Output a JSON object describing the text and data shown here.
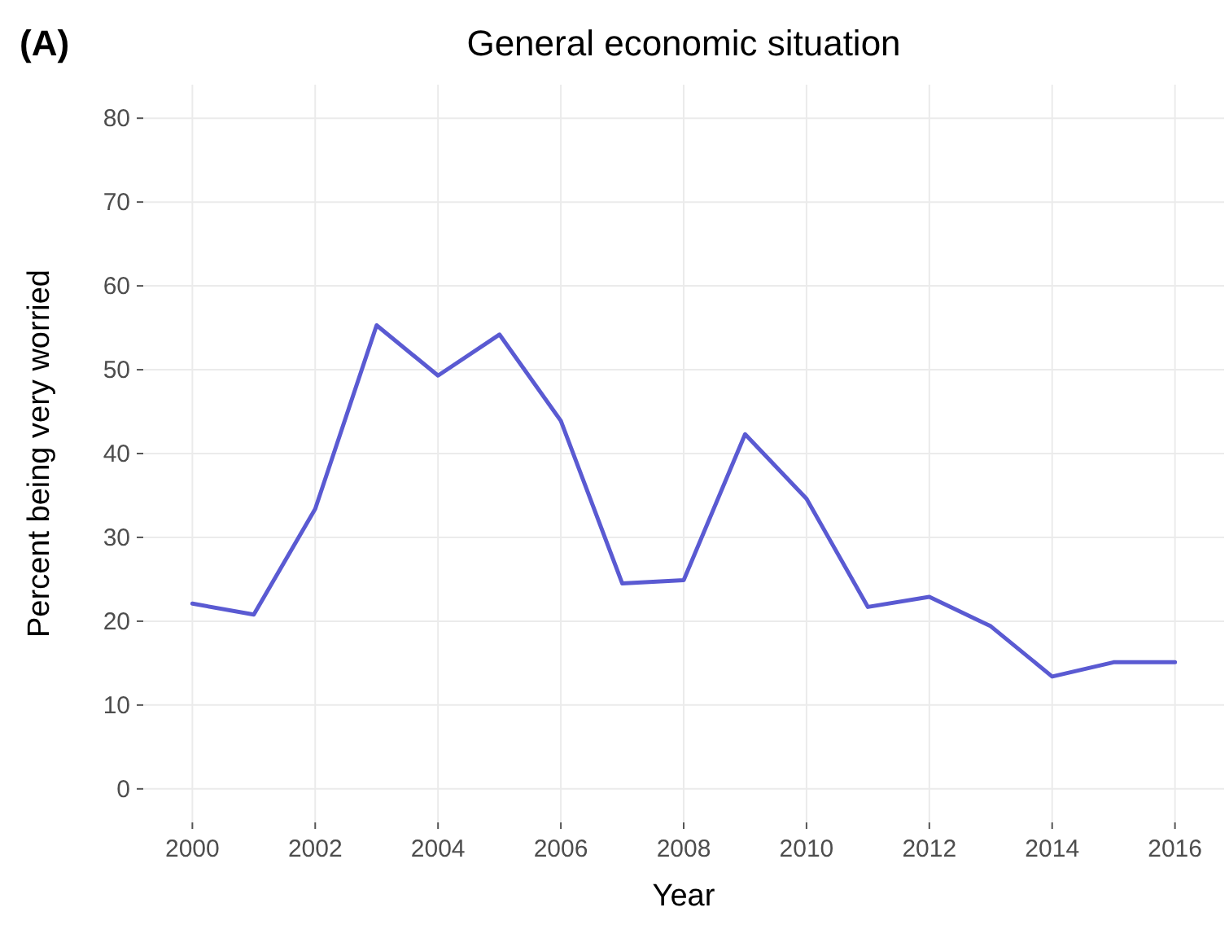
{
  "chart_data": {
    "type": "line",
    "title": "General economic situation",
    "xlabel": "Year",
    "ylabel": "Percent being very worried",
    "annotations": [
      "(A)"
    ],
    "x": [
      2000,
      2001,
      2002,
      2003,
      2004,
      2005,
      2006,
      2007,
      2008,
      2009,
      2010,
      2011,
      2012,
      2013,
      2014,
      2015,
      2016
    ],
    "series": [
      {
        "color": "#5a5ad2",
        "values": [
          22.1,
          20.8,
          33.4,
          55.3,
          49.3,
          54.2,
          43.9,
          24.5,
          24.9,
          42.3,
          34.6,
          21.7,
          22.9,
          19.4,
          13.4,
          15.1,
          15.1
        ]
      }
    ],
    "xlim": [
      1999.2,
      2016.8
    ],
    "xticks": [
      2000,
      2002,
      2004,
      2006,
      2008,
      2010,
      2012,
      2014,
      2016
    ],
    "ylim": [
      -4,
      84
    ],
    "yticks": [
      0,
      10,
      20,
      30,
      40,
      50,
      60,
      70,
      80
    ],
    "grid": true,
    "marker": "none",
    "line_style": "solid"
  }
}
